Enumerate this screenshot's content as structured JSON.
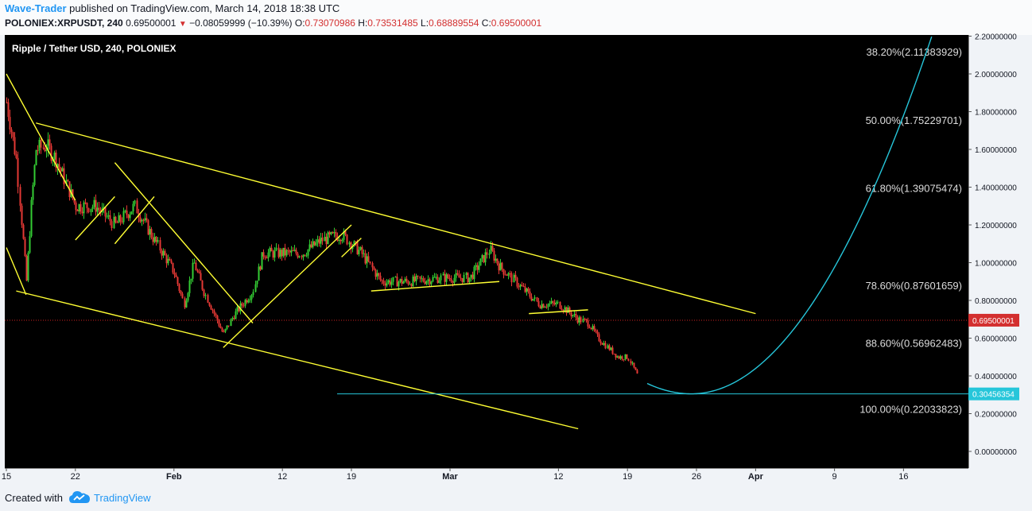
{
  "header": {
    "author": "Wave-Trader",
    "published_text": " published on TradingView.com, March 14, 2018 18:38 UTC",
    "symbol": "POLONIEX:XRPUSDT, 240",
    "last_price": "0.69500001",
    "change": "−0.08059999 (−10.39%)",
    "o_label": "O:",
    "o_value": "0.73070986",
    "h_label": "H:",
    "h_value": "0.73531485",
    "l_label": "L:",
    "l_value": "0.68889554",
    "c_label": "C:",
    "c_value": "0.69500001"
  },
  "footer": {
    "created_with": "Created with",
    "brand": "TradingView"
  },
  "colors": {
    "background": "#000000",
    "up_candle": "#33cc33",
    "down_candle": "#e53935",
    "trendline": "#ffff33",
    "projection": "#26c6da",
    "last_price_line": "#cc2222",
    "axis_text": "#131722"
  },
  "chart_data": {
    "type": "candlestick",
    "title": "Ripple / Tether USD, 240, POLONIEX",
    "y_axis": {
      "min": 0,
      "max": 2.2,
      "ticks": [
        "0.00000000",
        "0.20000000",
        "0.40000000",
        "0.60000000",
        "0.80000000",
        "1.00000000",
        "1.20000000",
        "1.40000000",
        "1.60000000",
        "1.80000000",
        "2.00000000",
        "2.20000000"
      ],
      "tick_values": [
        0,
        0.2,
        0.4,
        0.6,
        0.8,
        1.0,
        1.2,
        1.4,
        1.6,
        1.8,
        2.0,
        2.2
      ]
    },
    "x_axis": {
      "labels": [
        "15",
        "22",
        "Feb",
        "12",
        "19",
        "Mar",
        "12",
        "19",
        "26",
        "Apr",
        "9",
        "16"
      ],
      "dates": [
        "2018-01-15",
        "2018-01-22",
        "2018-02-01",
        "2018-02-12",
        "2018-02-19",
        "2018-03-01",
        "2018-03-12",
        "2018-03-19",
        "2018-03-26",
        "2018-04-01",
        "2018-04-09",
        "2018-04-16"
      ]
    },
    "price_path": [
      [
        "2018-01-15",
        1.85
      ],
      [
        "2018-01-16",
        1.55
      ],
      [
        "2018-01-17",
        0.9
      ],
      [
        "2018-01-17.5",
        1.3
      ],
      [
        "2018-01-18",
        1.6
      ],
      [
        "2018-01-19",
        1.62
      ],
      [
        "2018-01-20",
        1.55
      ],
      [
        "2018-01-22",
        1.3
      ],
      [
        "2018-01-24",
        1.3
      ],
      [
        "2018-01-26",
        1.2
      ],
      [
        "2018-01-28",
        1.3
      ],
      [
        "2018-01-30",
        1.12
      ],
      [
        "2018-02-01",
        0.95
      ],
      [
        "2018-02-02",
        0.78
      ],
      [
        "2018-02-03",
        1.0
      ],
      [
        "2018-02-04",
        0.85
      ],
      [
        "2018-02-06",
        0.62
      ],
      [
        "2018-02-07",
        0.72
      ],
      [
        "2018-02-09",
        0.85
      ],
      [
        "2018-02-10",
        1.05
      ],
      [
        "2018-02-12",
        1.05
      ],
      [
        "2018-02-14",
        1.05
      ],
      [
        "2018-02-16",
        1.12
      ],
      [
        "2018-02-18",
        1.15
      ],
      [
        "2018-02-20",
        1.05
      ],
      [
        "2018-02-22",
        0.9
      ],
      [
        "2018-02-25",
        0.9
      ],
      [
        "2018-02-28",
        0.92
      ],
      [
        "2018-03-03",
        0.92
      ],
      [
        "2018-03-05",
        1.07
      ],
      [
        "2018-03-06",
        0.98
      ],
      [
        "2018-03-08",
        0.88
      ],
      [
        "2018-03-10",
        0.78
      ],
      [
        "2018-03-12",
        0.78
      ],
      [
        "2018-03-14",
        0.7
      ],
      [
        "2018-03-15",
        0.68
      ],
      [
        "2018-03-16",
        0.6
      ],
      [
        "2018-03-17",
        0.55
      ],
      [
        "2018-03-18",
        0.5
      ],
      [
        "2018-03-19",
        0.5
      ],
      [
        "2018-03-20",
        0.4
      ]
    ],
    "last_price": {
      "label": "0.69500001",
      "value": 0.695
    },
    "target_level": {
      "label": "0.30456354",
      "value": 0.30456354
    },
    "fibonacci_levels": [
      {
        "label": "38.20%(2.11383929)",
        "value": 2.11383929
      },
      {
        "label": "50.00%(1.75229701)",
        "value": 1.75229701
      },
      {
        "label": "61.80%(1.39075474)",
        "value": 1.39075474
      },
      {
        "label": "78.60%(0.87601659)",
        "value": 0.87601659
      },
      {
        "label": "88.60%(0.56962483)",
        "value": 0.56962483
      },
      {
        "label": "100.00%(0.22033823)",
        "value": 0.22033823
      }
    ],
    "trendlines": [
      {
        "name": "channel-top",
        "from": [
          "2018-01-18",
          1.74
        ],
        "to": [
          "2018-04-01",
          0.73
        ]
      },
      {
        "name": "channel-bottom",
        "from": [
          "2018-01-16",
          0.85
        ],
        "to": [
          "2018-03-14",
          0.12
        ]
      },
      {
        "name": "wave-1-top",
        "from": [
          "2018-01-15",
          2.0
        ],
        "to": [
          "2018-01-22",
          1.33
        ]
      },
      {
        "name": "wave-1-bottom",
        "from": [
          "2018-01-15",
          1.08
        ],
        "to": [
          "2018-01-17",
          0.83
        ]
      },
      {
        "name": "wave-2-up",
        "from": [
          "2018-01-22",
          1.12
        ],
        "to": [
          "2018-01-26",
          1.35
        ]
      },
      {
        "name": "wave-3-top",
        "from": [
          "2018-01-26",
          1.53
        ],
        "to": [
          "2018-02-09",
          0.68
        ]
      },
      {
        "name": "wave-3-up",
        "from": [
          "2018-01-26",
          1.1
        ],
        "to": [
          "2018-01-30",
          1.35
        ]
      },
      {
        "name": "wave-4-up",
        "from": [
          "2018-02-06",
          0.55
        ],
        "to": [
          "2018-02-19",
          1.2
        ]
      },
      {
        "name": "wave-4-small",
        "from": [
          "2018-02-18",
          1.03
        ],
        "to": [
          "2018-02-20",
          1.13
        ]
      },
      {
        "name": "consolidation-1",
        "from": [
          "2018-02-21",
          0.85
        ],
        "to": [
          "2018-03-06",
          0.9
        ]
      },
      {
        "name": "consolidation-2",
        "from": [
          "2018-03-09",
          0.73
        ],
        "to": [
          "2018-03-15",
          0.75
        ]
      }
    ],
    "projection_curve": {
      "from": [
        "2018-03-21",
        0.36
      ],
      "min": [
        "2018-03-25.5",
        0.305
      ],
      "to": [
        "2018-04-19",
        2.22
      ]
    }
  }
}
